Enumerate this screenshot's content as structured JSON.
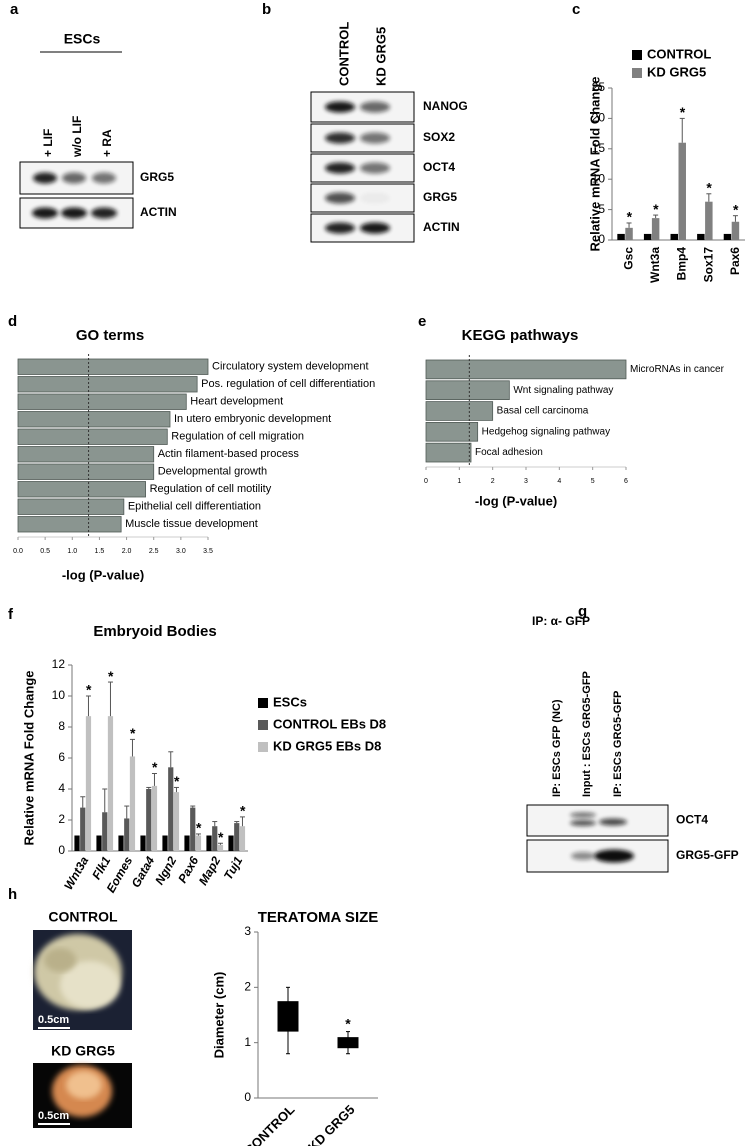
{
  "panel_labels": [
    "a",
    "b",
    "c",
    "d",
    "e",
    "f",
    "g",
    "h"
  ],
  "blot_a": {
    "group": "ESCs",
    "lanes": [
      "+ LIF",
      "w/o LIF",
      "+ RA"
    ],
    "rows": [
      "GRG5",
      "ACTIN"
    ]
  },
  "blot_b": {
    "lanes": [
      "CONTROL",
      "KD GRG5"
    ],
    "rows": [
      "NANOG",
      "SOX2",
      "OCT4",
      "GRG5",
      "ACTIN"
    ]
  },
  "blot_g": {
    "title": "IP: α- GFP",
    "lanes": [
      "IP: ESCs GFP (NC)",
      "Input : ESCs GRG5-GFP",
      "IP: ESCs GRG5-GFP"
    ],
    "rows": [
      "OCT4",
      "GRG5-GFP"
    ]
  },
  "photos": {
    "labels": [
      "CONTROL",
      "KD GRG5"
    ],
    "scale": [
      "0.5cm",
      "0.5cm"
    ]
  },
  "chart_data": [
    {
      "type": "bar",
      "y_label": "Relative mRNA Fold Change",
      "categories": [
        "Gsc",
        "Wnt3a",
        "Bmp4",
        "Sox17",
        "Pax6"
      ],
      "series": [
        {
          "name": "CONTROL",
          "color": "#000000",
          "values": [
            1,
            1,
            1,
            1,
            1
          ]
        },
        {
          "name": "KD GRG5",
          "color": "#808080",
          "values": [
            2,
            3.6,
            16,
            6.3,
            3
          ],
          "errors": [
            0.8,
            0.5,
            4,
            1.3,
            1
          ],
          "significance": [
            "*",
            "*",
            "*",
            "*",
            "*"
          ]
        }
      ],
      "ylim": [
        0,
        25
      ],
      "yticks": [
        0,
        5,
        10,
        15,
        20,
        25
      ],
      "legend": "top"
    },
    {
      "type": "barh",
      "title": "GO terms",
      "x_label": "-log (P-value)",
      "categories": [
        "Circulatory system development",
        "Pos. regulation of cell differentiation",
        "Heart development",
        "In utero embryonic development",
        "Regulation of cell migration",
        "Actin filament-based process",
        "Developmental growth",
        "Regulation of cell motility",
        "Epithelial cell differentiation",
        "Muscle tissue development"
      ],
      "values": [
        3.5,
        3.3,
        3.1,
        2.8,
        2.75,
        2.5,
        2.5,
        2.35,
        1.95,
        1.9
      ],
      "color": "#8a9590",
      "threshold": 1.3,
      "xlim": [
        0,
        3.5
      ],
      "xticks": [
        {
          "value": 0,
          "label": "0.0"
        },
        0.5,
        {
          "value": 1,
          "label": "1.0"
        },
        1.5,
        {
          "value": 2,
          "label": "2.0"
        },
        2.5,
        {
          "value": 3,
          "label": "3.0"
        },
        3.5
      ]
    },
    {
      "type": "barh",
      "title": "KEGG pathways",
      "x_label": "-log (P-value)",
      "categories": [
        "MicroRNAs in cancer",
        "Wnt signaling pathway",
        "Basal cell carcinoma",
        "Hedgehog signaling pathway",
        "Focal adhesion"
      ],
      "values": [
        6,
        2.5,
        2,
        1.55,
        1.35
      ],
      "color": "#8a9590",
      "threshold": 1.3,
      "xlim": [
        0,
        6
      ],
      "xticks": [
        0,
        1,
        2,
        3,
        4,
        5,
        6
      ]
    },
    {
      "type": "bar",
      "title": "Embryoid Bodies",
      "y_label": "Relative mRNA Fold Change",
      "categories": [
        "Wnt3a",
        "Flk1",
        "Eomes",
        "Gata4",
        "Ngn2",
        "Pax6",
        "Map2",
        "Tuj1"
      ],
      "series": [
        {
          "name": "ESCs",
          "color": "#000000",
          "values": [
            1,
            1,
            1,
            1,
            1,
            1,
            1,
            1
          ]
        },
        {
          "name": "CONTROL EBs D8",
          "color": "#595959",
          "values": [
            2.8,
            2.5,
            2.1,
            4.0,
            5.4,
            2.8,
            1.6,
            1.8
          ],
          "errors": [
            0.7,
            1.5,
            0.8,
            0.1,
            1.0,
            0.1,
            0.3,
            0.1
          ]
        },
        {
          "name": "KD GRG5 EBs D8",
          "color": "#c0c0c0",
          "values": [
            8.7,
            8.7,
            6.1,
            4.2,
            3.8,
            1.0,
            0.4,
            1.6
          ],
          "errors": [
            1.3,
            2.2,
            1.1,
            0.8,
            0.3,
            0.1,
            0.1,
            0.6
          ],
          "significance": [
            "*",
            "*",
            "*",
            "*",
            "*",
            "*",
            "*",
            "*"
          ]
        }
      ],
      "ylim": [
        0,
        12
      ],
      "yticks": [
        0,
        2,
        4,
        6,
        8,
        10,
        12
      ],
      "legend": "right"
    },
    {
      "type": "box",
      "title": "TERATOMA SIZE",
      "y_label": "Diameter (cm)",
      "categories": [
        "CONTROL",
        "KD GRG5"
      ],
      "boxes": [
        {
          "min": 0.8,
          "q1": 1.2,
          "q3": 1.75,
          "max": 2
        },
        {
          "min": 0.8,
          "q1": 0.9,
          "q3": 1.1,
          "max": 1.2
        }
      ],
      "significance": [
        null,
        "*"
      ],
      "color": "#000000",
      "ylim": [
        0,
        3
      ],
      "yticks": [
        0,
        1,
        2,
        3
      ]
    }
  ]
}
